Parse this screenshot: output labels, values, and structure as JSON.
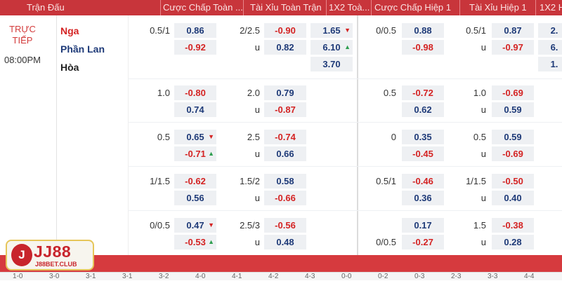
{
  "header": {
    "match_col": "Trận Đấu",
    "ft_handicap": "Cược Chấp Toàn ...",
    "ft_overunder": "Tài Xỉu Toàn Trận",
    "ft_1x2": "1X2 Toà...",
    "h1_handicap": "Cược Chấp Hiệp 1",
    "h1_overunder": "Tài Xỉu Hiệp 1",
    "h1_1x2": "1X2 H"
  },
  "match": {
    "status_line1": "TRỰC",
    "status_line2": "TIẾP",
    "time": "08:00PM",
    "home": "Nga",
    "away": "Phần Lan",
    "draw": "Hòa"
  },
  "rows": [
    {
      "ft_hcp": "0.5/1",
      "ft_hcp_home": "0.86",
      "ft_hcp_away": "-0.92",
      "ft_ou": "2/2.5",
      "ft_ou_over": "-0.90",
      "ft_ou_u": "u",
      "ft_ou_under": "0.82",
      "x12_home": "1.65",
      "x12_away": "6.10",
      "x12_draw": "3.70",
      "h1_hcp": "0/0.5",
      "h1_hcp_home": "0.88",
      "h1_hcp_away": "-0.98",
      "h1_ou": "0.5/1",
      "h1_ou_over": "0.87",
      "h1_ou_u": "u",
      "h1_ou_under": "-0.97",
      "h1_x12_home": "2.",
      "h1_x12_away": "6.",
      "h1_x12_draw": "1."
    },
    {
      "ft_hcp": "1.0",
      "ft_hcp_home": "-0.80",
      "ft_hcp_away": "0.74",
      "ft_ou": "2.0",
      "ft_ou_over": "0.79",
      "ft_ou_u": "u",
      "ft_ou_under": "-0.87",
      "h1_hcp": "0.5",
      "h1_hcp_home": "-0.72",
      "h1_hcp_away": "0.62",
      "h1_ou": "1.0",
      "h1_ou_over": "-0.69",
      "h1_ou_u": "u",
      "h1_ou_under": "0.59"
    },
    {
      "ft_hcp": "0.5",
      "ft_hcp_home": "0.65",
      "ft_hcp_away": "-0.71",
      "ft_ou": "2.5",
      "ft_ou_over": "-0.74",
      "ft_ou_u": "u",
      "ft_ou_under": "0.66",
      "h1_hcp": "0",
      "h1_hcp_home": "0.35",
      "h1_hcp_away": "-0.45",
      "h1_ou": "0.5",
      "h1_ou_over": "0.59",
      "h1_ou_u": "u",
      "h1_ou_under": "-0.69"
    },
    {
      "ft_hcp": "1/1.5",
      "ft_hcp_home": "-0.62",
      "ft_hcp_away": "0.56",
      "ft_ou": "1.5/2",
      "ft_ou_over": "0.58",
      "ft_ou_u": "u",
      "ft_ou_under": "-0.66",
      "h1_hcp": "0.5/1",
      "h1_hcp_home": "-0.46",
      "h1_hcp_away": "0.36",
      "h1_ou": "1/1.5",
      "h1_ou_over": "-0.50",
      "h1_ou_u": "u",
      "h1_ou_under": "0.40"
    },
    {
      "ft_hcp": "0/0.5",
      "ft_hcp_home": "0.47",
      "ft_hcp_away": "-0.53",
      "ft_ou": "2.5/3",
      "ft_ou_over": "-0.56",
      "ft_ou_u": "u",
      "ft_ou_under": "0.48",
      "h1_hcp_away_line": "0/0.5",
      "h1_hcp_home": "0.17",
      "h1_hcp_away": "-0.27",
      "h1_ou": "1.5",
      "h1_ou_over": "-0.38",
      "h1_ou_u": "u",
      "h1_ou_under": "0.28"
    }
  ],
  "footer": {
    "scores": [
      "1-0",
      "3-0",
      "3-1",
      "3-1",
      "3-2",
      "4-0",
      "4-1",
      "4-2",
      "4-3",
      "0-0",
      "0-2",
      "0-3",
      "2-3",
      "3-3",
      "4-4"
    ]
  },
  "logo": {
    "brand": "JJ88",
    "mark": "J",
    "site": "J88BET.CLUB"
  },
  "colors": {
    "header": "#c8353b",
    "positive": "#1e3a78",
    "negative": "#d42323",
    "live": "#d33c3c",
    "arrow_up": "#2e9e4f"
  },
  "icons": {
    "up": "triangle-up-icon",
    "down": "triangle-down-icon"
  }
}
